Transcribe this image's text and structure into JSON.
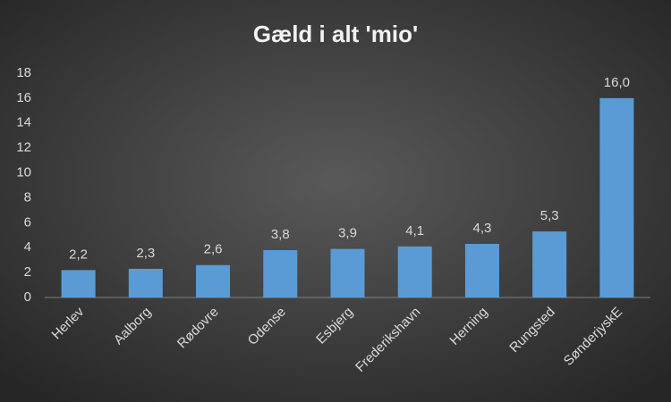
{
  "chart_data": {
    "type": "bar",
    "title": "Gæld i alt 'mio'",
    "categories": [
      "Herlev",
      "Aalborg",
      "Rødovre",
      "Odense",
      "Esbjerg",
      "Frederikshavn",
      "Herning",
      "Rungsted",
      "SønderjyskE"
    ],
    "values": [
      2.2,
      2.3,
      2.6,
      3.8,
      3.9,
      4.1,
      4.3,
      5.3,
      16.0
    ],
    "value_labels": [
      "2,2",
      "2,3",
      "2,6",
      "3,8",
      "3,9",
      "4,1",
      "4,3",
      "5,3",
      "16,0"
    ],
    "color": "#5b9bd5",
    "ylim": [
      0,
      18
    ],
    "yticks": [
      0,
      2,
      4,
      6,
      8,
      10,
      12,
      14,
      16,
      18
    ],
    "grid": false
  }
}
